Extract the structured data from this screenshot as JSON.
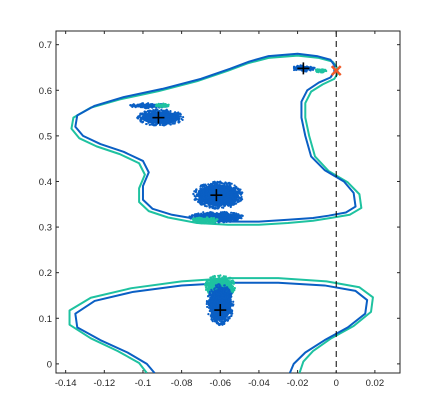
{
  "chart_data": {
    "type": "scatter",
    "xlim": [
      -0.145,
      0.033
    ],
    "ylim": [
      -0.02,
      0.73
    ],
    "x_ticks": [
      -0.14,
      -0.12,
      -0.1,
      -0.08,
      -0.06,
      -0.04,
      -0.02,
      0,
      0.02
    ],
    "x_tick_labels": [
      "-0.14",
      "-0.12",
      "-0.1",
      "-0.08",
      "-0.06",
      "-0.04",
      "-0.02",
      "0",
      "0.02"
    ],
    "y_ticks": [
      0,
      0.1,
      0.2,
      0.3,
      0.4,
      0.5,
      0.6,
      0.7
    ],
    "y_tick_labels": [
      "0",
      "0.1",
      "0.2",
      "0.3",
      "0.4",
      "0.5",
      "0.6",
      "0.7"
    ],
    "grid": false,
    "colors": {
      "blue": "#0a5fc4",
      "teal": "#1ec2a0",
      "orange": "#f05a28",
      "black": "#000000"
    },
    "vertical_line": {
      "x": 0,
      "style": "dashed"
    },
    "crosses": [
      {
        "x": -0.017,
        "y": 0.648
      },
      {
        "x": -0.092,
        "y": 0.54
      },
      {
        "x": -0.062,
        "y": 0.37
      },
      {
        "x": -0.06,
        "y": 0.118
      }
    ],
    "marked_point": {
      "x": 0.0,
      "y": 0.643,
      "marker": "x"
    },
    "clusters": [
      {
        "cx": -0.091,
        "cy": 0.54,
        "rx": 0.012,
        "ry": 0.018,
        "color": "blue"
      },
      {
        "cx": -0.097,
        "cy": 0.566,
        "rx": 0.01,
        "ry": 0.006,
        "color": "blue"
      },
      {
        "cx": -0.09,
        "cy": 0.567,
        "rx": 0.004,
        "ry": 0.004,
        "color": "teal"
      },
      {
        "cx": -0.017,
        "cy": 0.648,
        "rx": 0.006,
        "ry": 0.007,
        "color": "blue"
      },
      {
        "cx": -0.008,
        "cy": 0.643,
        "rx": 0.003,
        "ry": 0.004,
        "color": "teal"
      },
      {
        "cx": -0.061,
        "cy": 0.37,
        "rx": 0.013,
        "ry": 0.03,
        "color": "blue"
      },
      {
        "cx": -0.062,
        "cy": 0.322,
        "rx": 0.014,
        "ry": 0.012,
        "color": "blue"
      },
      {
        "cx": -0.068,
        "cy": 0.315,
        "rx": 0.007,
        "ry": 0.007,
        "color": "teal"
      },
      {
        "cx": -0.06,
        "cy": 0.17,
        "rx": 0.008,
        "ry": 0.025,
        "color": "teal"
      },
      {
        "cx": -0.06,
        "cy": 0.13,
        "rx": 0.007,
        "ry": 0.045,
        "color": "blue"
      }
    ],
    "curves": {
      "upper_blue": [
        [
          -0.001,
          0.655
        ],
        [
          -0.003,
          0.667
        ],
        [
          -0.01,
          0.675
        ],
        [
          -0.02,
          0.68
        ],
        [
          -0.035,
          0.675
        ],
        [
          -0.045,
          0.663
        ],
        [
          -0.055,
          0.647
        ],
        [
          -0.07,
          0.625
        ],
        [
          -0.09,
          0.603
        ],
        [
          -0.11,
          0.585
        ],
        [
          -0.125,
          0.566
        ],
        [
          -0.134,
          0.545
        ],
        [
          -0.135,
          0.52
        ],
        [
          -0.131,
          0.5
        ],
        [
          -0.122,
          0.482
        ],
        [
          -0.11,
          0.465
        ],
        [
          -0.1,
          0.445
        ],
        [
          -0.097,
          0.42
        ],
        [
          -0.1,
          0.39
        ],
        [
          -0.1,
          0.36
        ],
        [
          -0.095,
          0.34
        ],
        [
          -0.085,
          0.327
        ],
        [
          -0.07,
          0.316
        ],
        [
          -0.055,
          0.312
        ],
        [
          -0.04,
          0.312
        ],
        [
          -0.025,
          0.316
        ],
        [
          -0.012,
          0.32
        ],
        [
          -0.004,
          0.325
        ],
        [
          0.005,
          0.332
        ],
        [
          0.01,
          0.345
        ],
        [
          0.009,
          0.375
        ],
        [
          0.004,
          0.4
        ],
        [
          -0.006,
          0.425
        ],
        [
          -0.013,
          0.455
        ],
        [
          -0.016,
          0.5
        ],
        [
          -0.018,
          0.54
        ],
        [
          -0.018,
          0.575
        ],
        [
          -0.015,
          0.6
        ],
        [
          -0.009,
          0.617
        ],
        [
          -0.003,
          0.628
        ],
        [
          -0.001,
          0.64
        ],
        [
          -0.001,
          0.655
        ]
      ],
      "upper_teal": [
        [
          0.0,
          0.653
        ],
        [
          -0.002,
          0.663
        ],
        [
          -0.009,
          0.671
        ],
        [
          -0.02,
          0.676
        ],
        [
          -0.035,
          0.671
        ],
        [
          -0.046,
          0.659
        ],
        [
          -0.056,
          0.643
        ],
        [
          -0.072,
          0.62
        ],
        [
          -0.092,
          0.598
        ],
        [
          -0.112,
          0.58
        ],
        [
          -0.127,
          0.562
        ],
        [
          -0.136,
          0.54
        ],
        [
          -0.137,
          0.516
        ],
        [
          -0.133,
          0.495
        ],
        [
          -0.124,
          0.477
        ],
        [
          -0.112,
          0.46
        ],
        [
          -0.102,
          0.44
        ],
        [
          -0.099,
          0.415
        ],
        [
          -0.102,
          0.385
        ],
        [
          -0.102,
          0.355
        ],
        [
          -0.097,
          0.335
        ],
        [
          -0.087,
          0.321
        ],
        [
          -0.072,
          0.309
        ],
        [
          -0.056,
          0.305
        ],
        [
          -0.04,
          0.305
        ],
        [
          -0.025,
          0.309
        ],
        [
          -0.012,
          0.314
        ],
        [
          -0.003,
          0.32
        ],
        [
          0.007,
          0.327
        ],
        [
          0.013,
          0.342
        ],
        [
          0.012,
          0.372
        ],
        [
          0.006,
          0.398
        ],
        [
          -0.004,
          0.423
        ],
        [
          -0.011,
          0.455
        ],
        [
          -0.014,
          0.5
        ],
        [
          -0.016,
          0.54
        ],
        [
          -0.016,
          0.572
        ],
        [
          -0.013,
          0.597
        ],
        [
          -0.007,
          0.613
        ],
        [
          -0.001,
          0.625
        ],
        [
          0.001,
          0.638
        ],
        [
          0.0,
          0.653
        ]
      ],
      "lower_blue": [
        [
          -0.094,
          -0.02
        ],
        [
          -0.098,
          0.0
        ],
        [
          -0.108,
          0.025
        ],
        [
          -0.122,
          0.052
        ],
        [
          -0.134,
          0.08
        ],
        [
          -0.135,
          0.11
        ],
        [
          -0.125,
          0.138
        ],
        [
          -0.105,
          0.158
        ],
        [
          -0.08,
          0.172
        ],
        [
          -0.055,
          0.178
        ],
        [
          -0.03,
          0.178
        ],
        [
          -0.006,
          0.172
        ],
        [
          0.01,
          0.16
        ],
        [
          0.016,
          0.14
        ],
        [
          0.015,
          0.11
        ],
        [
          0.006,
          0.08
        ],
        [
          -0.006,
          0.052
        ],
        [
          -0.016,
          0.025
        ],
        [
          -0.022,
          0.0
        ],
        [
          -0.024,
          -0.02
        ]
      ],
      "lower_teal": [
        [
          -0.098,
          -0.02
        ],
        [
          -0.102,
          0.002
        ],
        [
          -0.113,
          0.028
        ],
        [
          -0.127,
          0.056
        ],
        [
          -0.138,
          0.086
        ],
        [
          -0.138,
          0.117
        ],
        [
          -0.127,
          0.145
        ],
        [
          -0.106,
          0.166
        ],
        [
          -0.08,
          0.181
        ],
        [
          -0.055,
          0.188
        ],
        [
          -0.03,
          0.188
        ],
        [
          -0.005,
          0.181
        ],
        [
          0.012,
          0.168
        ],
        [
          0.019,
          0.146
        ],
        [
          0.018,
          0.114
        ],
        [
          0.009,
          0.083
        ],
        [
          -0.003,
          0.055
        ],
        [
          -0.012,
          0.028
        ],
        [
          -0.017,
          0.005
        ],
        [
          -0.019,
          -0.02
        ]
      ]
    }
  }
}
